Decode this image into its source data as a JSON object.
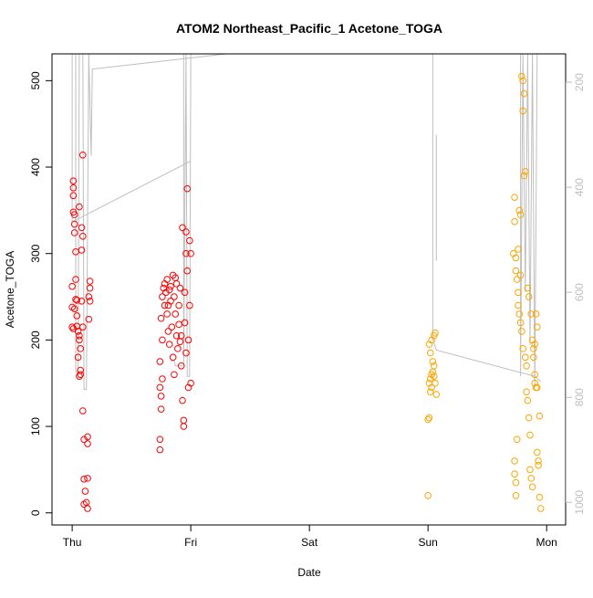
{
  "chart_data": {
    "type": "scatter",
    "title": "ATOM2 Northeast_Pacific_1 Acetone_TOGA",
    "x_label": "Date",
    "y_label": "Acetone_TOGA",
    "xlim": [
      -0.17,
      4.16
    ],
    "xticks": [
      {
        "value": 0,
        "label": "Thu"
      },
      {
        "value": 1,
        "label": "Fri"
      },
      {
        "value": 2,
        "label": "Sat"
      },
      {
        "value": 3,
        "label": "Sun"
      },
      {
        "value": 4,
        "label": "Mon"
      }
    ],
    "ylim": [
      -14,
      531
    ],
    "yticks": [
      0,
      100,
      200,
      300,
      400,
      500
    ],
    "y2lim": [
      1043,
      146
    ],
    "y2ticks": [
      200,
      400,
      600,
      800,
      1000
    ],
    "grid": false,
    "series": [
      {
        "type": "line",
        "axis": "y2",
        "color": "#bebebe",
        "x": [
          0.0,
          0.0,
          1.0,
          null,
          0.03,
          0.03,
          0.05,
          0.06,
          null,
          0.09,
          0.1,
          0.12,
          0.14,
          0.16,
          0.17,
          1.3,
          null,
          0.94,
          0.94,
          0.96,
          0.97,
          0.99,
          1.0,
          null,
          0.83,
          0.86,
          0.87,
          0.93,
          null,
          3.04,
          3.04,
          3.07,
          3.9,
          3.95,
          null,
          3.07,
          3.07,
          null,
          3.78,
          3.78,
          3.8,
          3.82,
          3.84,
          3.86,
          3.88,
          3.9,
          3.92
        ],
        "values": [
          146,
          466,
          350,
          null,
          146,
          750,
          760,
          146,
          null,
          146,
          785,
          785,
          146,
          340,
          175,
          146,
          null,
          146,
          740,
          146,
          760,
          760,
          146,
          null,
          730,
          730,
          740,
          740,
          null,
          146,
          690,
          710,
          760,
          770,
          null,
          300,
          540,
          null,
          146,
          760,
          146,
          600,
          146,
          700,
          146,
          780,
          146
        ]
      },
      {
        "color": "#ff0000",
        "x": [
          0.01,
          0.01,
          0.01,
          0.01,
          0.02,
          0.02,
          0.02,
          0.03,
          0.03,
          0.0,
          0.03,
          0.04,
          0.0,
          0.02,
          0.0,
          0.01,
          0.04,
          0.05,
          0.06,
          0.06,
          0.07,
          0.05,
          0.07,
          0.07,
          0.06,
          0.09,
          0.06,
          0.08,
          0.09,
          0.08,
          0.09,
          0.1,
          0.13,
          0.13,
          0.1,
          0.13,
          0.11,
          0.12,
          0.1,
          0.13,
          0.15,
          0.15,
          0.14,
          0.15,
          0.14,
          0.08,
          0.09,
          0.04,
          0.74,
          0.74,
          0.75,
          0.75,
          0.74,
          0.76,
          0.74,
          0.76,
          0.75,
          0.76,
          0.77,
          0.78,
          0.78,
          0.79,
          0.8,
          0.8,
          0.81,
          0.82,
          0.82,
          0.83,
          0.83,
          0.84,
          0.85,
          0.85,
          0.86,
          0.86,
          0.87,
          0.88,
          0.88,
          0.89,
          0.9,
          0.9,
          0.91,
          0.91,
          0.92,
          0.93,
          0.93,
          0.94,
          0.94,
          0.95,
          0.95,
          0.96,
          0.96,
          0.97,
          0.97,
          0.98,
          0.98,
          0.99,
          0.99,
          1.0,
          1.0,
          0.96,
          0.92,
          0.87,
          0.81
        ],
        "values": [
          384,
          376,
          367,
          348,
          345,
          334,
          324,
          302,
          270,
          262,
          247,
          246,
          238,
          236,
          215,
          213,
          216,
          210,
          205,
          200,
          190,
          180,
          165,
          160,
          158,
          414,
          354,
          330,
          320,
          304,
          118,
          85,
          88,
          80,
          39,
          40,
          25,
          12,
          10,
          5,
          268,
          260,
          250,
          245,
          224,
          245,
          215,
          228,
          73,
          85,
          120,
          135,
          145,
          155,
          175,
          200,
          225,
          250,
          260,
          265,
          240,
          255,
          270,
          230,
          210,
          258,
          195,
          245,
          262,
          215,
          180,
          275,
          250,
          160,
          230,
          205,
          265,
          190,
          240,
          218,
          198,
          260,
          170,
          130,
          330,
          100,
          107,
          255,
          220,
          325,
          300,
          375,
          280,
          200,
          145,
          315,
          240,
          300,
          150,
          185,
          205,
          272,
          240
        ]
      },
      {
        "color": "#ffa500",
        "x": [
          3.0,
          3.01,
          3.0,
          3.02,
          3.03,
          3.01,
          3.02,
          3.03,
          3.04,
          3.05,
          3.04,
          3.02,
          3.01,
          3.03,
          3.05,
          3.06,
          3.07,
          3.06,
          3.05,
          3.73,
          3.73,
          3.72,
          3.74,
          3.74,
          3.75,
          3.73,
          3.73,
          3.74,
          3.74,
          3.75,
          3.76,
          3.76,
          3.77,
          3.77,
          3.78,
          3.78,
          3.79,
          3.8,
          3.79,
          3.8,
          3.81,
          3.8,
          3.82,
          3.81,
          3.82,
          3.83,
          3.83,
          3.84,
          3.84,
          3.85,
          3.85,
          3.86,
          3.86,
          3.87,
          3.88,
          3.88,
          3.89,
          3.89,
          3.9,
          3.9,
          3.91,
          3.91,
          3.92,
          3.92,
          3.93,
          3.93,
          3.94,
          3.94,
          3.95,
          3.76,
          3.78,
          3.87,
          3.9,
          3.92
        ],
        "values": [
          20,
          110,
          108,
          140,
          145,
          150,
          155,
          160,
          163,
          170,
          175,
          185,
          195,
          200,
          205,
          208,
          137,
          150,
          158,
          365,
          337,
          300,
          295,
          280,
          270,
          60,
          45,
          35,
          20,
          85,
          255,
          240,
          230,
          350,
          345,
          220,
          210,
          190,
          505,
          500,
          485,
          465,
          395,
          390,
          180,
          170,
          140,
          130,
          260,
          250,
          110,
          90,
          50,
          40,
          30,
          200,
          190,
          180,
          160,
          150,
          145,
          230,
          215,
          70,
          60,
          55,
          112,
          18,
          5,
          305,
          275,
          230,
          195,
          145
        ]
      }
    ]
  }
}
